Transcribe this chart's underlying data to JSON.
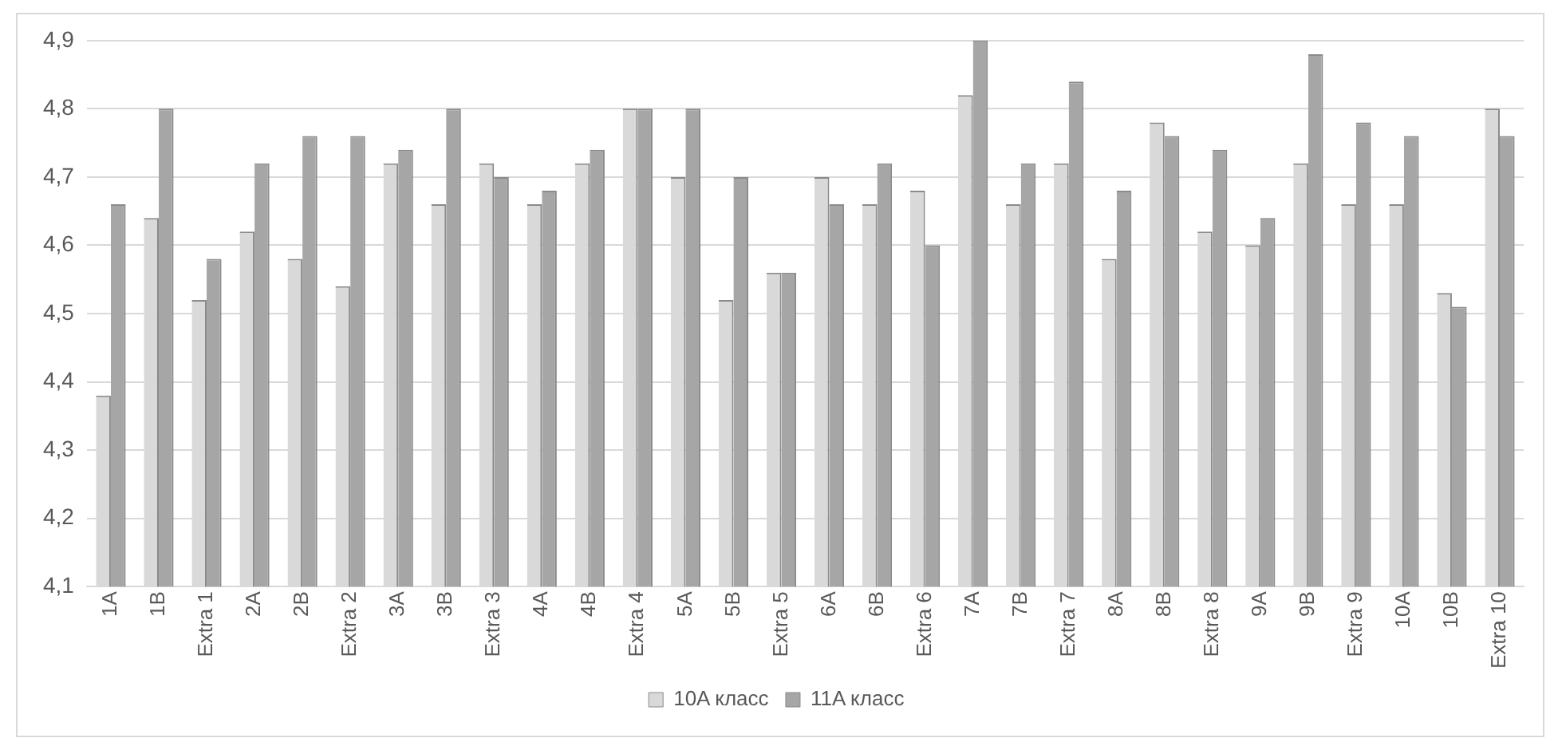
{
  "chart_data": {
    "type": "bar",
    "categories": [
      "1A",
      "1B",
      "Extra 1",
      "2A",
      "2B",
      "Extra 2",
      "3A",
      "3B",
      "Extra 3",
      "4A",
      "4B",
      "Extra 4",
      "5A",
      "5B",
      "Extra 5",
      "6A",
      "6B",
      "Extra 6",
      "7A",
      "7B",
      "Extra 7",
      "8A",
      "8B",
      "Extra 8",
      "9A",
      "9B",
      "Extra 9",
      "10A",
      "10B",
      "Extra 10"
    ],
    "series": [
      {
        "name": "10A класс",
        "color": "#d9d9d9",
        "values": [
          4.38,
          4.64,
          4.52,
          4.62,
          4.58,
          4.54,
          4.72,
          4.66,
          4.72,
          4.66,
          4.72,
          4.8,
          4.7,
          4.52,
          4.56,
          4.7,
          4.66,
          4.68,
          4.82,
          4.66,
          4.72,
          4.58,
          4.78,
          4.62,
          4.6,
          4.72,
          4.66,
          4.66,
          4.53,
          4.8
        ]
      },
      {
        "name": "11A класс",
        "color": "#a6a6a6",
        "values": [
          4.66,
          4.8,
          4.58,
          4.72,
          4.76,
          4.76,
          4.74,
          4.8,
          4.7,
          4.68,
          4.74,
          4.8,
          4.8,
          4.7,
          4.56,
          4.66,
          4.72,
          4.6,
          4.9,
          4.72,
          4.84,
          4.68,
          4.76,
          4.74,
          4.64,
          4.88,
          4.78,
          4.76,
          4.51,
          4.76
        ]
      }
    ],
    "ylim": [
      4.1,
      4.9
    ],
    "yticks": [
      {
        "value": 4.1,
        "label": "4,1"
      },
      {
        "value": 4.2,
        "label": "4,2"
      },
      {
        "value": 4.3,
        "label": "4,3"
      },
      {
        "value": 4.4,
        "label": "4,4"
      },
      {
        "value": 4.5,
        "label": "4,5"
      },
      {
        "value": 4.6,
        "label": "4,6"
      },
      {
        "value": 4.7,
        "label": "4,7"
      },
      {
        "value": 4.8,
        "label": "4,8"
      },
      {
        "value": 4.9,
        "label": "4,9"
      }
    ],
    "grid": "y",
    "legend": "bottom"
  }
}
